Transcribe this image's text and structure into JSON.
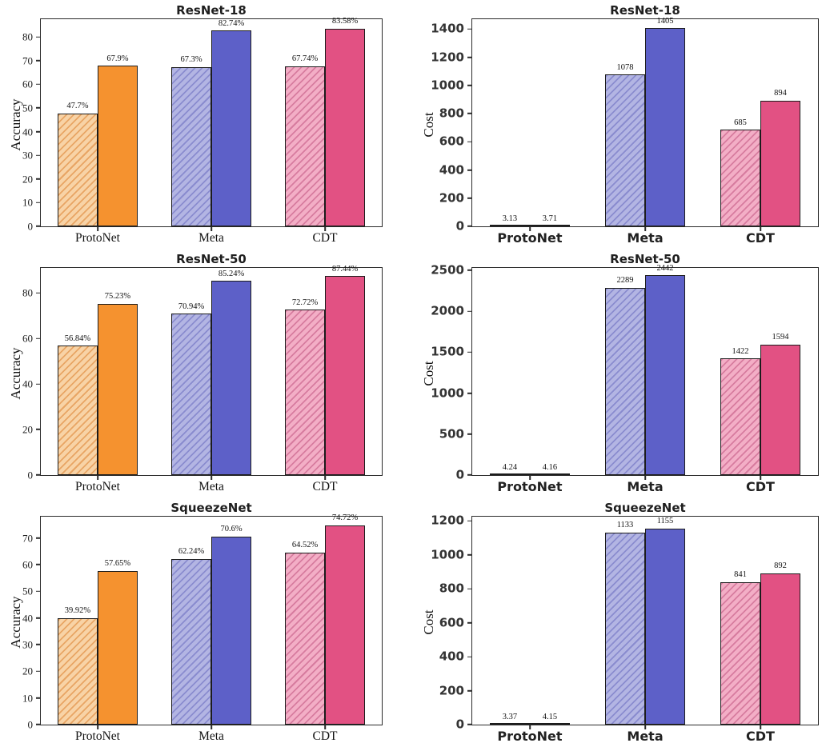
{
  "figure": {
    "background": "#ffffff",
    "rows": [
      "ResNet-18",
      "ResNet-50",
      "SqueezeNet"
    ],
    "columns": [
      "Accuracy",
      "Cost"
    ]
  },
  "colors": {
    "bar_edge": "#1c1c1c",
    "axis": "#2b2b2b",
    "text": "#111111",
    "series": {
      "ProtoNet": {
        "solid": "#F5922F",
        "hatch_fill": "#F8D3A6",
        "hatch_line": "#E8A564"
      },
      "Meta": {
        "solid": "#5D60C8",
        "hatch_fill": "#B3B5E3",
        "hatch_line": "#8A8CCF"
      },
      "CDT": {
        "solid": "#E25183",
        "hatch_fill": "#F3AEC6",
        "hatch_line": "#D77C9F"
      }
    }
  },
  "chart_data": [
    {
      "id": "resnet18-accuracy",
      "type": "bar",
      "title": "ResNet-18",
      "ylabel": "Accuracy",
      "grid": false,
      "legend": "none",
      "tick_font": "serif",
      "categories": [
        "ProtoNet",
        "Meta",
        "CDT"
      ],
      "series": [
        {
          "name": "hatched",
          "values": [
            47.7,
            67.3,
            67.74
          ],
          "labels": [
            "47.7%",
            "67.3%",
            "67.74%"
          ]
        },
        {
          "name": "solid",
          "values": [
            67.9,
            82.74,
            83.58
          ],
          "labels": [
            "67.9%",
            "82.74%",
            "83.58%"
          ]
        }
      ],
      "yticks": [
        0,
        10,
        20,
        30,
        40,
        50,
        60,
        70,
        80
      ],
      "ylim": [
        0,
        87.5
      ]
    },
    {
      "id": "resnet18-cost",
      "type": "bar",
      "title": "ResNet-18",
      "ylabel": "Cost",
      "grid": false,
      "legend": "none",
      "tick_font": "sans",
      "categories": [
        "ProtoNet",
        "Meta",
        "CDT"
      ],
      "series": [
        {
          "name": "hatched",
          "values": [
            3.13,
            1078,
            685
          ],
          "labels": [
            "3.13",
            "1078",
            "685"
          ]
        },
        {
          "name": "solid",
          "values": [
            3.71,
            1405,
            894
          ],
          "labels": [
            "3.71",
            "1405",
            "894"
          ]
        }
      ],
      "yticks": [
        0,
        200,
        400,
        600,
        800,
        1000,
        1200,
        1400
      ],
      "ylim": [
        0,
        1470
      ]
    },
    {
      "id": "resnet50-accuracy",
      "type": "bar",
      "title": "ResNet-50",
      "ylabel": "Accuracy",
      "grid": false,
      "legend": "none",
      "tick_font": "serif",
      "categories": [
        "ProtoNet",
        "Meta",
        "CDT"
      ],
      "series": [
        {
          "name": "hatched",
          "values": [
            56.84,
            70.94,
            72.72
          ],
          "labels": [
            "56.84%",
            "70.94%",
            "72.72%"
          ]
        },
        {
          "name": "solid",
          "values": [
            75.23,
            85.24,
            87.44
          ],
          "labels": [
            "75.23%",
            "85.24%",
            "87.44%"
          ]
        }
      ],
      "yticks": [
        0,
        20,
        40,
        60,
        80
      ],
      "ylim": [
        0,
        91
      ]
    },
    {
      "id": "resnet50-cost",
      "type": "bar",
      "title": "ResNet-50",
      "ylabel": "Cost",
      "grid": false,
      "legend": "none",
      "tick_font": "sans",
      "categories": [
        "ProtoNet",
        "Meta",
        "CDT"
      ],
      "series": [
        {
          "name": "hatched",
          "values": [
            4.24,
            2289,
            1422
          ],
          "labels": [
            "4.24",
            "2289",
            "1422"
          ]
        },
        {
          "name": "solid",
          "values": [
            4.16,
            2442,
            1594
          ],
          "labels": [
            "4.16",
            "2442",
            "1594"
          ]
        }
      ],
      "yticks": [
        0,
        500,
        1000,
        1500,
        2000,
        2500
      ],
      "ylim": [
        0,
        2530
      ]
    },
    {
      "id": "squeezenet-accuracy",
      "type": "bar",
      "title": "SqueezeNet",
      "ylabel": "Accuracy",
      "grid": false,
      "legend": "none",
      "tick_font": "serif",
      "categories": [
        "ProtoNet",
        "Meta",
        "CDT"
      ],
      "series": [
        {
          "name": "hatched",
          "values": [
            39.92,
            62.24,
            64.52
          ],
          "labels": [
            "39.92%",
            "62.24%",
            "64.52%"
          ]
        },
        {
          "name": "solid",
          "values": [
            57.65,
            70.6,
            74.72
          ],
          "labels": [
            "57.65%",
            "70.6%",
            "74.72%"
          ]
        }
      ],
      "yticks": [
        0,
        10,
        20,
        30,
        40,
        50,
        60,
        70
      ],
      "ylim": [
        0,
        78
      ]
    },
    {
      "id": "squeezenet-cost",
      "type": "bar",
      "title": "SqueezeNet",
      "ylabel": "Cost",
      "grid": false,
      "legend": "none",
      "tick_font": "sans",
      "categories": [
        "ProtoNet",
        "Meta",
        "CDT"
      ],
      "series": [
        {
          "name": "hatched",
          "values": [
            3.37,
            1133,
            841
          ],
          "labels": [
            "3.37",
            "1133",
            "841"
          ]
        },
        {
          "name": "solid",
          "values": [
            4.15,
            1155,
            892
          ],
          "labels": [
            "4.15",
            "1155",
            "892"
          ]
        }
      ],
      "yticks": [
        0,
        200,
        400,
        600,
        800,
        1000,
        1200
      ],
      "ylim": [
        0,
        1225
      ]
    }
  ]
}
